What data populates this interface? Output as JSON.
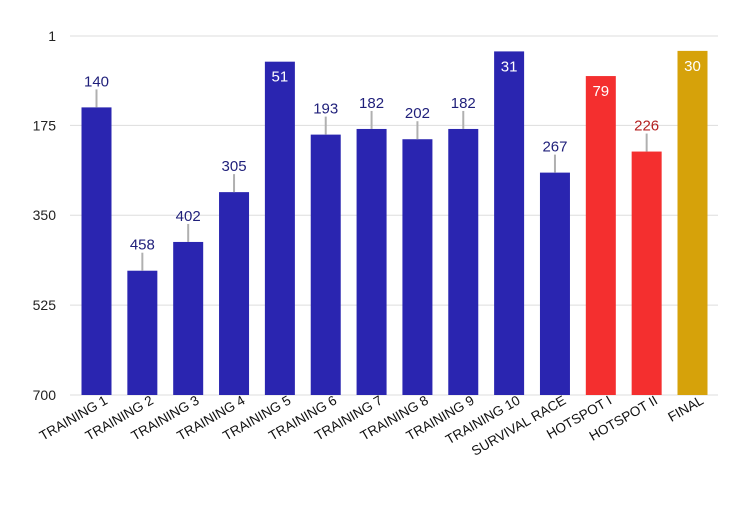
{
  "chart_data": {
    "type": "bar",
    "orientation": "vertical",
    "y_axis_reversed": true,
    "ylim": [
      1,
      700
    ],
    "yticks": [
      1,
      175,
      350,
      525,
      700
    ],
    "grid": true,
    "legend": "none",
    "title": "",
    "xlabel": "",
    "ylabel": "",
    "categories": [
      "TRAINING 1",
      "TRAINING 2",
      "TRAINING 3",
      "TRAINING 4",
      "TRAINING 5",
      "TRAINING 6",
      "TRAINING 7",
      "TRAINING 8",
      "TRAINING 9",
      "TRAINING 10",
      "SURVIVAL RACE",
      "HOTSPOT I",
      "HOTSPOT II",
      "FINAL"
    ],
    "values": [
      140,
      458,
      402,
      305,
      51,
      193,
      182,
      202,
      182,
      31,
      267,
      79,
      226,
      30
    ],
    "bar_colors": [
      "#2a25b0",
      "#2a25b0",
      "#2a25b0",
      "#2a25b0",
      "#2a25b0",
      "#2a25b0",
      "#2a25b0",
      "#2a25b0",
      "#2a25b0",
      "#2a25b0",
      "#2a25b0",
      "#f42f2f",
      "#f42f2f",
      "#d6a20a"
    ],
    "label_colors": [
      "#1f1f7a",
      "#1f1f7a",
      "#1f1f7a",
      "#1f1f7a",
      "#ffffff",
      "#1f1f7a",
      "#1f1f7a",
      "#1f1f7a",
      "#1f1f7a",
      "#ffffff",
      "#1f1f7a",
      "#ffffff",
      "#b42020",
      "#ffffff"
    ],
    "label_inside": [
      false,
      false,
      false,
      false,
      true,
      false,
      false,
      false,
      false,
      true,
      false,
      true,
      false,
      true
    ],
    "colors": {
      "grid": "#dddddd",
      "leader": "#b0b0b0"
    }
  }
}
